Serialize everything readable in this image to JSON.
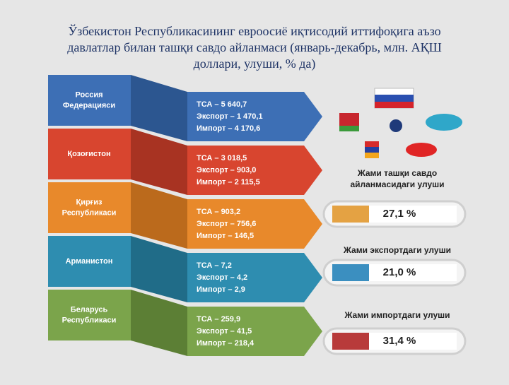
{
  "title": [
    "Ўзбекистон Республикасининг евроосиё иқтисодий иттифоқига аъзо",
    "давлатлар билан ташқи савдо айланмаси (январь-декабрь, млн. АҚШ",
    "доллари, улуши, % да)"
  ],
  "countries": [
    {
      "name": [
        "Россия",
        "Федерацияси"
      ],
      "lines": [
        "ТСА – 5 640,7",
        "Экспорт – 1 470,1",
        "Импорт – 4 170,6"
      ]
    },
    {
      "name": [
        "Қозоғистон"
      ],
      "lines": [
        "ТСА – 3 018,5",
        "Экспорт – 903,0",
        "Импорт – 2 115,5"
      ]
    },
    {
      "name": [
        "Қирғиз",
        "Республикаси"
      ],
      "lines": [
        "ТСА – 903,2",
        "Экспорт – 756,6",
        "Импорт – 146,5"
      ]
    },
    {
      "name": [
        "Арманистон"
      ],
      "lines": [
        "ТСА – 7,2",
        "Экспорт – 4,2",
        "Импорт – 2,9"
      ]
    },
    {
      "name": [
        "Беларусь",
        "Республикаси"
      ],
      "lines": [
        "ТСА – 259,9",
        "Экспорт – 41,5",
        "Импорт – 218,4"
      ]
    }
  ],
  "shares": [
    {
      "label": [
        "Жами ташқи савдо",
        "айланмасидаги улуши"
      ],
      "value": "27,1 %"
    },
    {
      "label": [
        "Жами экспортдаги улуши"
      ],
      "value": "21,0 %"
    },
    {
      "label": [
        "Жами импортдаги улуши"
      ],
      "value": "31,4 %"
    }
  ]
}
